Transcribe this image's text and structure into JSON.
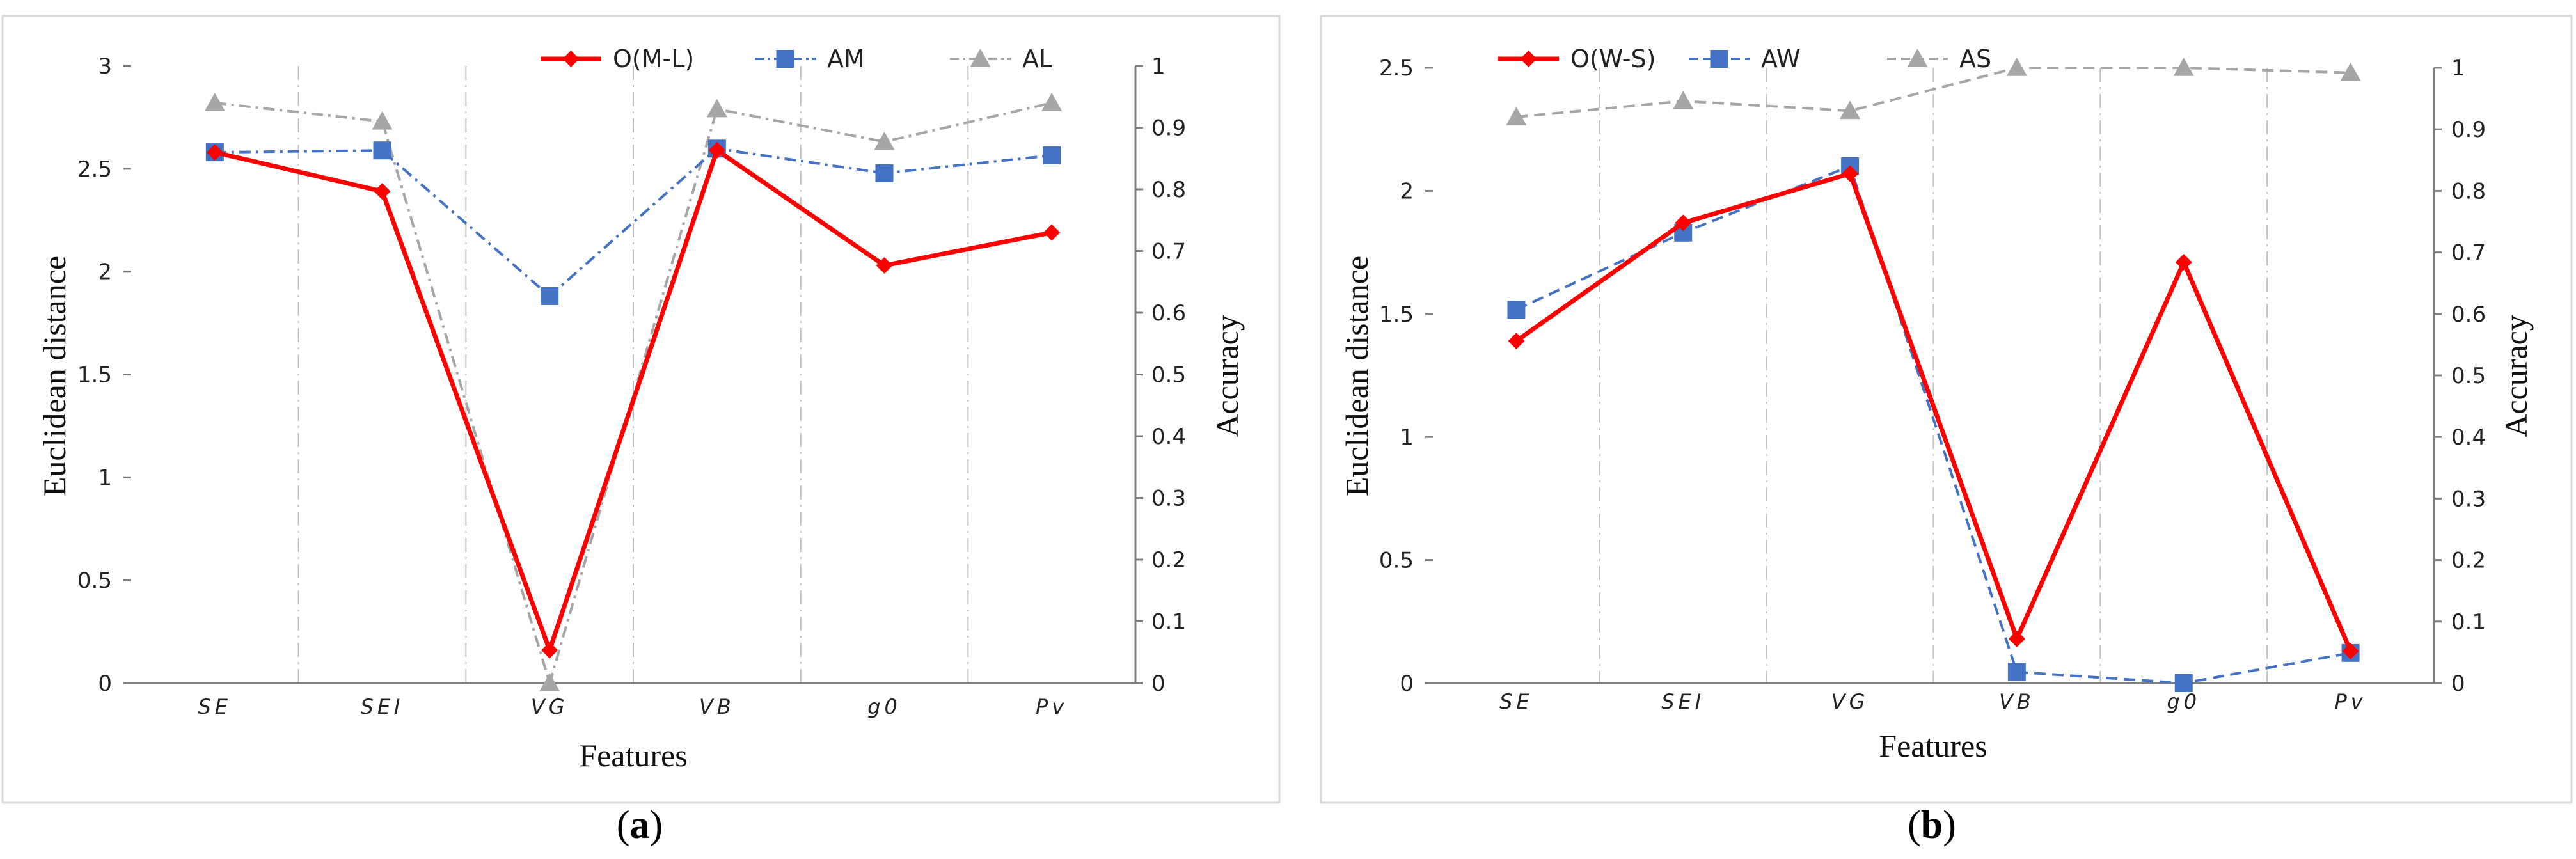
{
  "colors": {
    "om": "#ff0000",
    "am": "#4472c4",
    "al": "#a6a6a6",
    "grid": "#bfbfbf",
    "axis": "#7f7f7f"
  },
  "panels": [
    {
      "open": "(",
      "letter": "a",
      "close": ")"
    },
    {
      "open": "(",
      "letter": "b",
      "close": ")"
    }
  ],
  "chart_data": [
    {
      "type": "line",
      "title": "",
      "xlabel": "Features",
      "ylabel": "Euclidean distance",
      "y2label": "Accuracy",
      "categories": [
        "SE",
        "SEI",
        "VG",
        "VB",
        "g0",
        "Pv"
      ],
      "ylim": [
        0,
        3
      ],
      "yticks": [
        "0",
        "0.5",
        "1",
        "1.5",
        "2",
        "2.5",
        "3"
      ],
      "y2lim": [
        0,
        1
      ],
      "y2ticks": [
        "0",
        "0.1",
        "0.2",
        "0.3",
        "0.4",
        "0.5",
        "0.6",
        "0.7",
        "0.8",
        "0.9",
        "1"
      ],
      "legend_position": "top-right",
      "series": [
        {
          "name": "O(M-L)",
          "axis": "left",
          "style": "solid",
          "marker": "diamond",
          "color_key": "om",
          "values": [
            2.58,
            2.39,
            0.16,
            2.59,
            2.03,
            2.19
          ]
        },
        {
          "name": "AM",
          "axis": "right",
          "style": "dashdot",
          "marker": "square",
          "color_key": "am",
          "values": [
            0.86,
            0.863,
            0.627,
            0.866,
            0.826,
            0.855
          ]
        },
        {
          "name": "AL",
          "axis": "right",
          "style": "dashdot",
          "marker": "triangle",
          "color_key": "al",
          "values": [
            0.94,
            0.91,
            0.0,
            0.93,
            0.877,
            0.94
          ]
        }
      ]
    },
    {
      "type": "line",
      "title": "",
      "xlabel": "Features",
      "ylabel": "Euclidean distance",
      "y2label": "Accuracy",
      "categories": [
        "SE",
        "SEI",
        "VG",
        "VB",
        "g0",
        "Pv"
      ],
      "ylim": [
        0,
        2.5
      ],
      "yticks": [
        "0",
        "0.5",
        "1",
        "1.5",
        "2",
        "2.5"
      ],
      "y2lim": [
        0,
        1
      ],
      "y2ticks": [
        "0",
        "0.1",
        "0.2",
        "0.3",
        "0.4",
        "0.5",
        "0.6",
        "0.7",
        "0.8",
        "0.9",
        "1"
      ],
      "legend_position": "top",
      "series": [
        {
          "name": "O(W-S)",
          "axis": "left",
          "style": "solid",
          "marker": "diamond",
          "color_key": "om",
          "values": [
            1.39,
            1.87,
            2.07,
            0.18,
            1.71,
            0.13
          ]
        },
        {
          "name": "AW",
          "axis": "right",
          "style": "dashed",
          "marker": "square",
          "color_key": "am",
          "values": [
            0.607,
            0.732,
            0.84,
            0.018,
            0.0,
            0.049
          ]
        },
        {
          "name": "AS",
          "axis": "right",
          "style": "dashed",
          "marker": "triangle",
          "color_key": "al",
          "values": [
            0.92,
            0.946,
            0.93,
            1.0,
            1.0,
            0.992
          ]
        }
      ]
    }
  ]
}
